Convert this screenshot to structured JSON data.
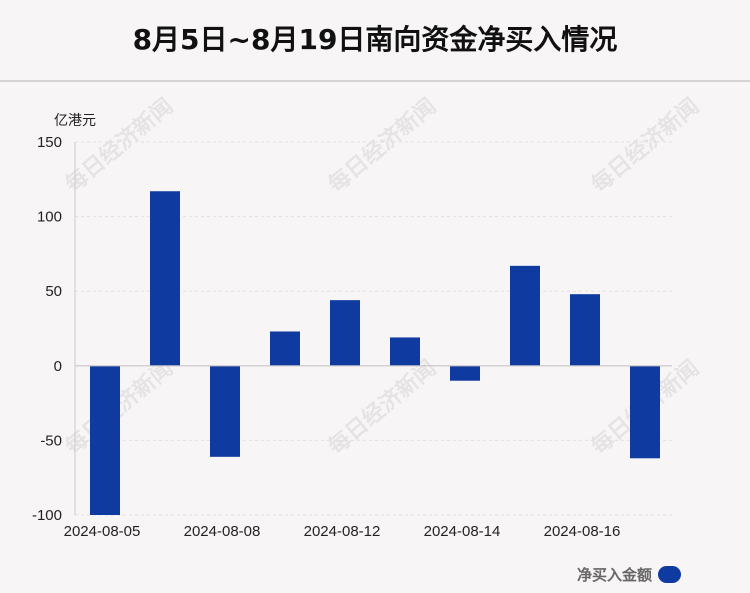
{
  "title": "8月5日~8月19日南向资金净买入情况",
  "watermark_text": "每日经济新闻",
  "legend": {
    "label": "净买入金额",
    "color": "#0f3aa0"
  },
  "chart_data": {
    "type": "bar",
    "title": "8月5日~8月19日南向资金净买入情况",
    "ylabel": "亿港元",
    "xlabel": "",
    "ylim": [
      -100,
      150
    ],
    "yticks": [
      150,
      100,
      50,
      0,
      -50,
      -100
    ],
    "grid": true,
    "legend_position": "bottom-right",
    "x_tick_labels": [
      {
        "label": "2024-08-05",
        "index": 0
      },
      {
        "label": "2024-08-08",
        "index": 2
      },
      {
        "label": "2024-08-12",
        "index": 4
      },
      {
        "label": "2024-08-14",
        "index": 6
      },
      {
        "label": "2024-08-16",
        "index": 8
      }
    ],
    "series": [
      {
        "name": "净买入金额",
        "color": "#0f3aa0",
        "values": [
          -100,
          117,
          -61,
          23,
          44,
          19,
          -10,
          67,
          48,
          -62
        ]
      }
    ]
  }
}
